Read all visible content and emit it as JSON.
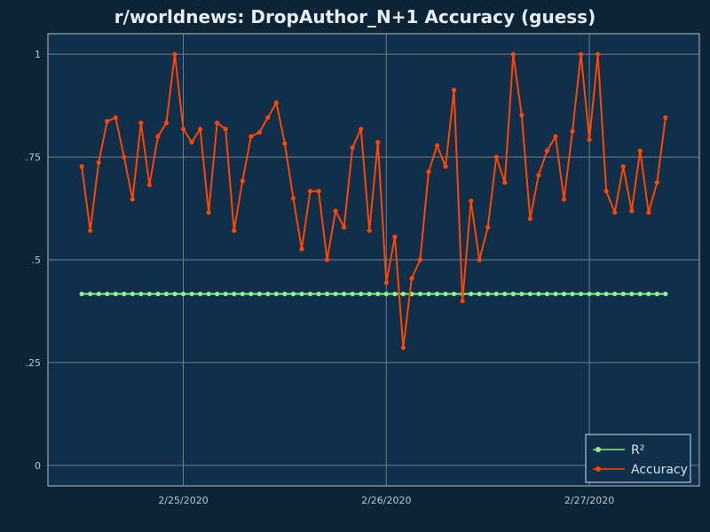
{
  "chart_data": {
    "type": "line",
    "title": "r/worldnews: DropAuthor_N+1 Accuracy (guess)",
    "xlabel": "",
    "ylabel": "",
    "x_tick_labels": [
      "2/25/2020",
      "2/26/2020",
      "2/27/2020"
    ],
    "y_tick_labels": [
      "0",
      ".25",
      ".5",
      ".75",
      "1"
    ],
    "ylim": [
      -0.05,
      1.05
    ],
    "xlim": [
      -4,
      73
    ],
    "x_ticks_at_index": [
      12,
      36,
      60
    ],
    "grid": true,
    "legend_position": "bottom-right",
    "series": [
      {
        "name": "R²",
        "color": "#90ee90",
        "values": [
          0.417,
          0.417,
          0.417,
          0.417,
          0.417,
          0.417,
          0.417,
          0.417,
          0.417,
          0.417,
          0.417,
          0.417,
          0.417,
          0.417,
          0.417,
          0.417,
          0.417,
          0.417,
          0.417,
          0.417,
          0.417,
          0.417,
          0.417,
          0.417,
          0.417,
          0.417,
          0.417,
          0.417,
          0.417,
          0.417,
          0.417,
          0.417,
          0.417,
          0.417,
          0.417,
          0.417,
          0.417,
          0.417,
          0.417,
          0.417,
          0.417,
          0.417,
          0.417,
          0.417,
          0.417,
          0.417,
          0.417,
          0.417,
          0.417,
          0.417,
          0.417,
          0.417,
          0.417,
          0.417,
          0.417,
          0.417,
          0.417,
          0.417,
          0.417,
          0.417,
          0.417,
          0.417,
          0.417,
          0.417,
          0.417,
          0.417,
          0.417,
          0.417,
          0.417,
          0.417
        ]
      },
      {
        "name": "Accuracy",
        "color": "#ff4500",
        "values": [
          0.727,
          0.571,
          0.737,
          0.837,
          0.846,
          0.75,
          0.647,
          0.833,
          0.682,
          0.8,
          0.833,
          1.0,
          0.818,
          0.786,
          0.818,
          0.615,
          0.833,
          0.818,
          0.571,
          0.692,
          0.8,
          0.81,
          0.846,
          0.882,
          0.783,
          0.65,
          0.526,
          0.667,
          0.667,
          0.5,
          0.619,
          0.579,
          0.773,
          0.818,
          0.571,
          0.786,
          0.444,
          0.556,
          0.286,
          0.455,
          0.5,
          0.714,
          0.778,
          0.727,
          0.913,
          0.4,
          0.643,
          0.5,
          0.579,
          0.75,
          0.688,
          1.0,
          0.852,
          0.6,
          0.706,
          0.765,
          0.8,
          0.647,
          0.813,
          1.0,
          0.792,
          1.0,
          0.667,
          0.615,
          0.727,
          0.619,
          0.765,
          0.615,
          0.688,
          0.846
        ]
      }
    ]
  }
}
